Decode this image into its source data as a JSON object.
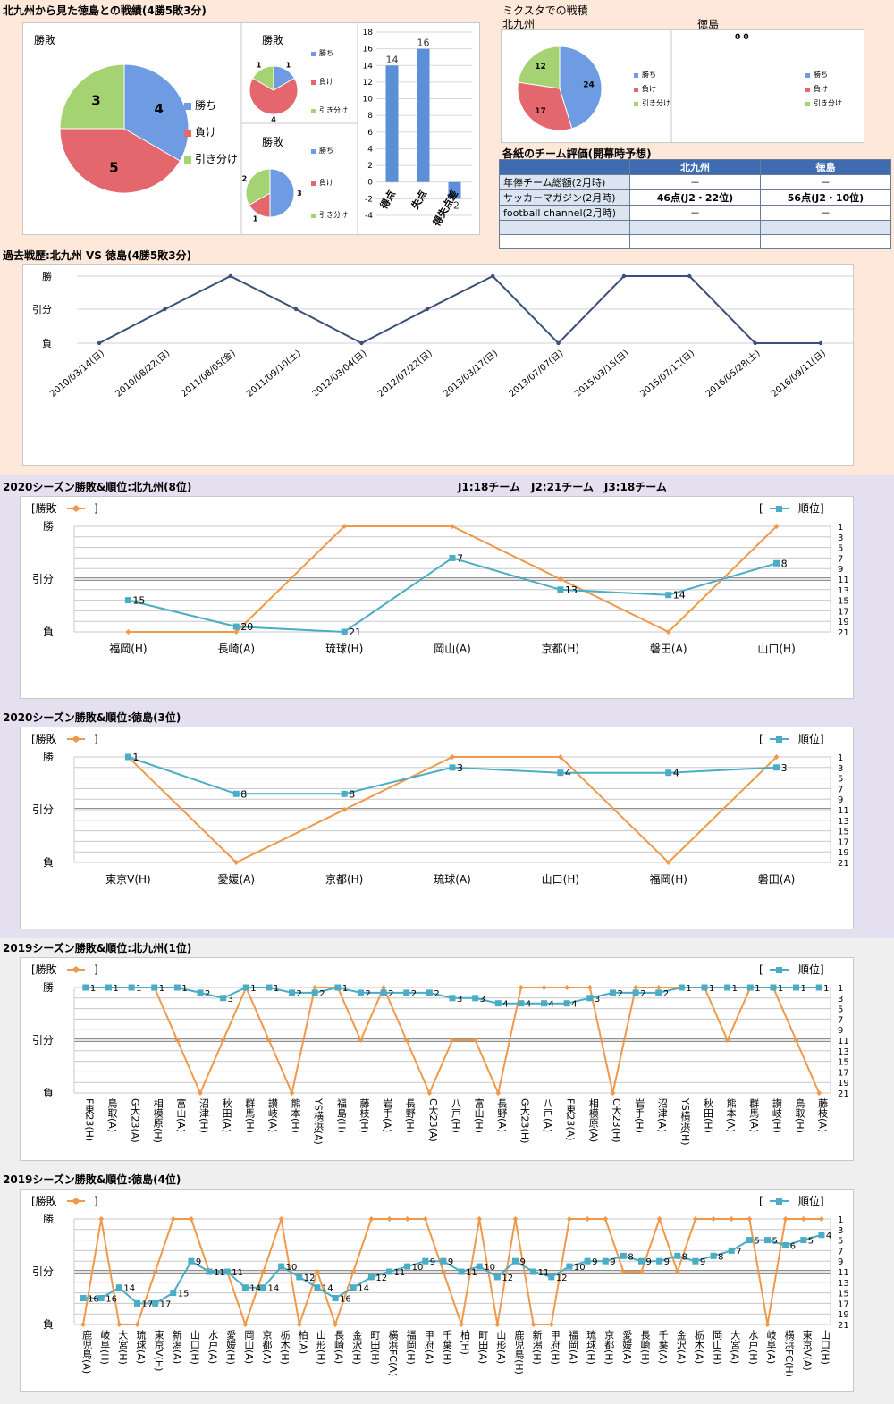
{
  "summary": {
    "title": "北九州から見た徳島との戦績(4勝5敗3分)",
    "big_pie_title": "勝敗",
    "small_pie1_title": "勝敗",
    "small_pie2_title": "勝敗",
    "legend": [
      "勝ち",
      "負け",
      "引き分け"
    ],
    "colors": [
      "#6f9be3",
      "#e3676c",
      "#a5d374"
    ]
  },
  "mixta": {
    "title": "ミクスタでの戦積",
    "team1": "北九州",
    "team2": "徳島",
    "team2_values": "0 0",
    "legend": [
      "勝ち",
      "負け",
      "引き分け"
    ]
  },
  "evaluation": {
    "title": "各紙のチーム評価(開幕時予想)",
    "headers": [
      "",
      "北九州",
      "徳島"
    ],
    "rows": [
      [
        "年俸チーム総額(2月時)",
        "－",
        "－"
      ],
      [
        "サッカーマガジン(2月時)",
        "46点(J2・22位)",
        "56点(J2・10位)"
      ],
      [
        "football channel(2月時)",
        "－",
        "－"
      ],
      [
        "",
        "",
        ""
      ],
      [
        "",
        "",
        ""
      ]
    ]
  },
  "history": {
    "title": "過去戦歴:北九州 VS 徳島(4勝5敗3分)"
  },
  "season_info": "J1:18チーム　J2:21チーム　J3:18チーム",
  "chart_titles": {
    "kita2020": "2020シーズン勝敗&順位:北九州(8位)",
    "toku2020": "2020シーズン勝敗&順位:徳島(3位)",
    "kita2019": "2019シーズン勝敗&順位:北九州(1位)",
    "toku2019": "2019シーズン勝敗&順位:徳島(4位)"
  },
  "labels": {
    "left_legend": "[勝敗",
    "bracket_close": "]",
    "right_legend_open": "[",
    "right_legend": "順位]",
    "result_levels": [
      "勝",
      "引分",
      "負"
    ],
    "rank_ticks": [
      "1",
      "3",
      "5",
      "7",
      "9",
      "11",
      "13",
      "15",
      "17",
      "19",
      "21"
    ]
  },
  "chart_data": [
    {
      "type": "pie",
      "categories": [
        "勝ち",
        "負け",
        "引き分け"
      ],
      "values": [
        4,
        5,
        3
      ],
      "title": "勝敗"
    },
    {
      "type": "pie",
      "categories": [
        "勝ち",
        "負け",
        "引き分け"
      ],
      "values": [
        1,
        4,
        1
      ],
      "title": "勝敗"
    },
    {
      "type": "pie",
      "categories": [
        "勝ち",
        "負け",
        "引き分け"
      ],
      "values": [
        3,
        1,
        2
      ],
      "title": "勝敗"
    },
    {
      "type": "bar",
      "categories": [
        "得点",
        "失点",
        "得失点差"
      ],
      "values": [
        14,
        16,
        -2
      ],
      "ylim": [
        -4,
        18
      ],
      "yticks": [
        -4,
        -2,
        0,
        2,
        4,
        6,
        8,
        10,
        12,
        14,
        16,
        18
      ]
    },
    {
      "type": "pie",
      "categories": [
        "勝ち",
        "負け",
        "引き分け"
      ],
      "values": [
        24,
        17,
        12
      ]
    },
    {
      "type": "line",
      "categories": [
        "2010/03/14(日)",
        "2010/08/22(日)",
        "2011/08/05(金)",
        "2011/09/10(土)",
        "2012/03/04(日)",
        "2012/07/22(日)",
        "2013/03/17(日)",
        "2013/07/07(日)",
        "2015/03/15(日)",
        "2015/07/12(日)",
        "2016/05/28(土)",
        "2016/09/11(日)"
      ],
      "results": [
        "負",
        "引分",
        "勝",
        "引分",
        "負",
        "引分",
        "勝",
        "負",
        "勝",
        "勝",
        "負",
        "負"
      ],
      "y_categories": [
        "負",
        "引分",
        "勝"
      ]
    },
    {
      "type": "line",
      "categories": [
        "福岡(H)",
        "長崎(A)",
        "琉球(H)",
        "岡山(A)",
        "京都(H)",
        "磐田(A)",
        "山口(H)"
      ],
      "results": [
        "負",
        "負",
        "勝",
        "勝",
        "引分",
        "負",
        "勝"
      ],
      "ranks": [
        15,
        20,
        21,
        7,
        13,
        14,
        8
      ],
      "rank_range": [
        1,
        21
      ],
      "series": [
        {
          "name": "勝敗"
        },
        {
          "name": "順位"
        }
      ]
    },
    {
      "type": "line",
      "categories": [
        "東京V(H)",
        "愛媛(A)",
        "京都(H)",
        "琉球(A)",
        "山口(H)",
        "福岡(H)",
        "磐田(A)"
      ],
      "results": [
        "勝",
        "負",
        "引分",
        "勝",
        "勝",
        "負",
        "勝"
      ],
      "ranks": [
        1,
        8,
        8,
        3,
        4,
        4,
        3
      ],
      "rank_range": [
        1,
        21
      ],
      "series": [
        {
          "name": "勝敗"
        },
        {
          "name": "順位"
        }
      ]
    },
    {
      "type": "line",
      "categories": [
        "F東23(H)",
        "鳥取(A)",
        "G大23(A)",
        "相模原(H)",
        "富山(A)",
        "沼津(H)",
        "秋田(A)",
        "群馬(H)",
        "讃岐(A)",
        "熊本(H)",
        "YS横浜(A)",
        "福島(H)",
        "藤枝(H)",
        "岩手(A)",
        "長野(H)",
        "C大23(A)",
        "八戸(H)",
        "富山(H)",
        "長野(A)",
        "G大23(H)",
        "八戸(A)",
        "F東23(A)",
        "相模原(A)",
        "C大23(H)",
        "岩手(H)",
        "沼津(A)",
        "YS横浜(H)",
        "秋田(H)",
        "熊本(A)",
        "群馬(A)",
        "讃岐(H)",
        "鳥取(H)",
        "藤枝(A)"
      ],
      "results": [
        "勝",
        "勝",
        "勝",
        "勝",
        "引分",
        "負",
        "引分",
        "勝",
        "引分",
        "負",
        "勝",
        "勝",
        "引分",
        "勝",
        "引分",
        "負",
        "引分",
        "引分",
        "負",
        "勝",
        "勝",
        "勝",
        "勝",
        "負",
        "勝",
        "勝",
        "勝",
        "勝",
        "引分",
        "勝",
        "勝",
        "引分",
        "負"
      ],
      "ranks": [
        1,
        1,
        1,
        1,
        1,
        2,
        3,
        1,
        1,
        2,
        2,
        1,
        2,
        2,
        2,
        2,
        3,
        3,
        4,
        4,
        4,
        4,
        3,
        2,
        2,
        2,
        1,
        1,
        1,
        1,
        1,
        1,
        1
      ],
      "rank_range": [
        1,
        21
      ],
      "series": [
        {
          "name": "勝敗"
        },
        {
          "name": "順位"
        }
      ]
    },
    {
      "type": "line",
      "categories": [
        "鹿児島(A)",
        "岐阜(H)",
        "大宮(H)",
        "琉球(A)",
        "東京V(H)",
        "新潟(A)",
        "山口(H)",
        "水戸(A)",
        "愛媛(H)",
        "岡山(A)",
        "京都(A)",
        "栃木(H)",
        "柏(A)",
        "山形(H)",
        "長崎(A)",
        "金沢(H)",
        "町田(H)",
        "横浜FC(A)",
        "福岡(H)",
        "甲府(A)",
        "千葉(H)",
        "柏(H)",
        "町田(A)",
        "山形(A)",
        "鹿児島(H)",
        "新潟(H)",
        "甲府(H)",
        "福岡(A)",
        "琉球(H)",
        "京都(H)",
        "愛媛(A)",
        "長崎(H)",
        "千葉(A)",
        "金沢(A)",
        "栃木(A)",
        "岡山(H)",
        "大宮(A)",
        "水戸(H)",
        "岐阜(A)",
        "横浜FC(H)",
        "東京V(A)",
        "山口(H)"
      ],
      "results": [
        "負",
        "勝",
        "負",
        "負",
        "引分",
        "勝",
        "勝",
        "引分",
        "引分",
        "負",
        "引分",
        "勝",
        "負",
        "引分",
        "負",
        "引分",
        "勝",
        "勝",
        "勝",
        "勝",
        "引分",
        "負",
        "勝",
        "負",
        "勝",
        "負",
        "負",
        "勝",
        "勝",
        "勝",
        "引分",
        "引分",
        "勝",
        "引分",
        "勝",
        "勝",
        "勝",
        "勝",
        "負",
        "勝",
        "勝",
        "勝"
      ],
      "ranks": [
        16,
        16,
        14,
        17,
        17,
        15,
        9,
        11,
        11,
        14,
        14,
        10,
        12,
        14,
        16,
        14,
        12,
        11,
        10,
        9,
        9,
        11,
        10,
        12,
        9,
        11,
        12,
        10,
        9,
        9,
        8,
        9,
        9,
        8,
        9,
        8,
        7,
        5,
        5,
        6,
        5,
        4
      ],
      "rank_range": [
        1,
        21
      ],
      "series": [
        {
          "name": "勝敗"
        },
        {
          "name": "順位"
        }
      ]
    }
  ]
}
